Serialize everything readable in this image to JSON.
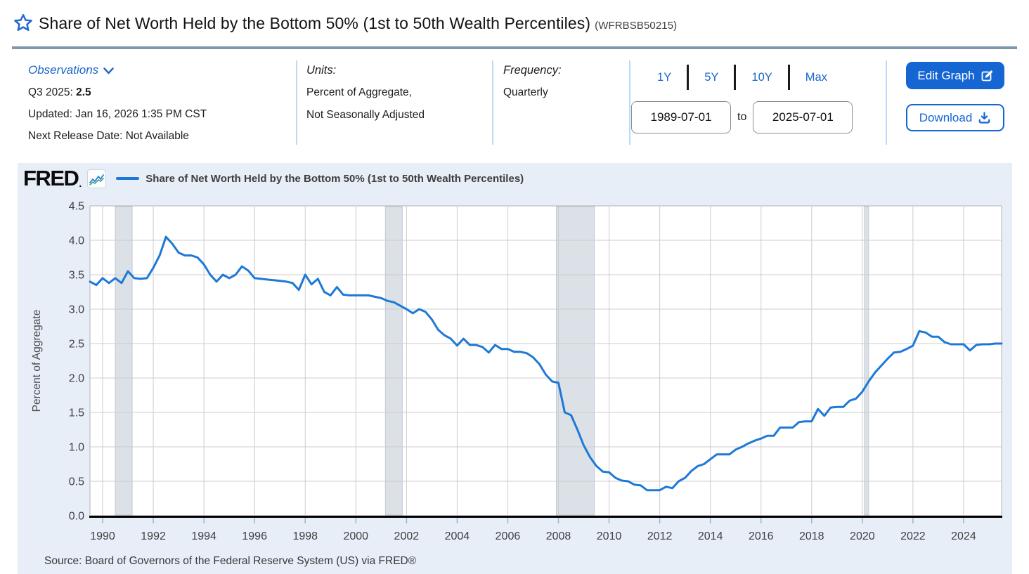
{
  "header": {
    "title": "Share of Net Worth Held by the Bottom 50% (1st to 50th Wealth Percentiles)",
    "series_id": "(WFRBSB50215)"
  },
  "meta": {
    "observations_label": "Observations",
    "observation_period": "Q3 2025:",
    "observation_value": "2.5",
    "updated": "Updated: Jan 16, 2026 1:35 PM CST",
    "next_release": "Next Release Date: Not Available",
    "units_label": "Units:",
    "units_line1": "Percent of Aggregate,",
    "units_line2": "Not Seasonally Adjusted",
    "frequency_label": "Frequency:",
    "frequency_value": "Quarterly"
  },
  "controls": {
    "ranges": [
      "1Y",
      "5Y",
      "10Y",
      "Max"
    ],
    "date_from": "1989-07-01",
    "to_label": "to",
    "date_to": "2025-07-01",
    "edit_graph_label": "Edit Graph",
    "download_label": "Download"
  },
  "chart": {
    "logo": "FRED",
    "legend": "Share of Net Worth Held by the Bottom 50% (1st to 50th Wealth Percentiles)",
    "source": "Source: Board of Governors of the Federal Reserve System (US) via FRED®"
  },
  "chart_data": {
    "type": "line",
    "title": "Share of Net Worth Held by the Bottom 50% (1st to 50th Wealth Percentiles)",
    "xlabel": "",
    "ylabel": "Percent of Aggregate",
    "ylim": [
      0,
      4.5
    ],
    "yticks": [
      "0.0",
      "0.5",
      "1.0",
      "1.5",
      "2.0",
      "2.5",
      "3.0",
      "3.5",
      "4.0",
      "4.5"
    ],
    "xticks": [
      1990,
      1992,
      1994,
      1996,
      1998,
      2000,
      2002,
      2004,
      2006,
      2008,
      2010,
      2012,
      2014,
      2016,
      2018,
      2020,
      2022,
      2024
    ],
    "x_start": "1989-07-01",
    "x_end": "2025-07-01",
    "frequency": "quarterly",
    "grid": true,
    "legend_position": "top",
    "values": [
      3.4,
      3.35,
      3.45,
      3.38,
      3.45,
      3.38,
      3.55,
      3.45,
      3.44,
      3.45,
      3.6,
      3.78,
      4.05,
      3.95,
      3.82,
      3.78,
      3.78,
      3.75,
      3.65,
      3.5,
      3.4,
      3.5,
      3.45,
      3.5,
      3.62,
      3.56,
      3.45,
      3.44,
      3.43,
      3.42,
      3.41,
      3.4,
      3.38,
      3.28,
      3.5,
      3.36,
      3.44,
      3.25,
      3.2,
      3.32,
      3.21,
      3.2,
      3.2,
      3.2,
      3.2,
      3.18,
      3.16,
      3.12,
      3.1,
      3.05,
      3.0,
      2.94,
      3.0,
      2.96,
      2.85,
      2.7,
      2.62,
      2.57,
      2.47,
      2.57,
      2.48,
      2.48,
      2.45,
      2.37,
      2.48,
      2.42,
      2.42,
      2.38,
      2.38,
      2.36,
      2.3,
      2.2,
      2.05,
      1.95,
      1.93,
      1.5,
      1.46,
      1.25,
      1.02,
      0.85,
      0.72,
      0.64,
      0.63,
      0.55,
      0.51,
      0.5,
      0.45,
      0.44,
      0.37,
      0.37,
      0.37,
      0.42,
      0.4,
      0.5,
      0.55,
      0.65,
      0.72,
      0.75,
      0.82,
      0.89,
      0.89,
      0.89,
      0.96,
      1.0,
      1.05,
      1.09,
      1.12,
      1.16,
      1.16,
      1.28,
      1.28,
      1.28,
      1.36,
      1.37,
      1.37,
      1.55,
      1.45,
      1.57,
      1.58,
      1.58,
      1.67,
      1.7,
      1.8,
      1.95,
      2.08,
      2.18,
      2.28,
      2.37,
      2.38,
      2.42,
      2.47,
      2.68,
      2.66,
      2.6,
      2.6,
      2.52,
      2.49,
      2.49,
      2.49,
      2.4,
      2.48,
      2.49,
      2.49,
      2.5,
      2.5
    ],
    "recessions": [
      {
        "from": "1990-07",
        "to": "1991-03"
      },
      {
        "from": "2001-03",
        "to": "2001-11"
      },
      {
        "from": "2007-12",
        "to": "2009-06"
      },
      {
        "from": "2020-02",
        "to": "2020-04"
      }
    ],
    "colors": {
      "line": "#1e79d6",
      "recession_fill": "#dce1e8",
      "recession_edge": "#c3c9d2",
      "grid": "#cccccc",
      "plot_border": "#b3b3b3",
      "axis": "#000000",
      "tick": "#9fb4c8",
      "link_blue": "#1b66c9",
      "button_blue": "#1565d3",
      "card_bg": "#e7eef8"
    }
  }
}
